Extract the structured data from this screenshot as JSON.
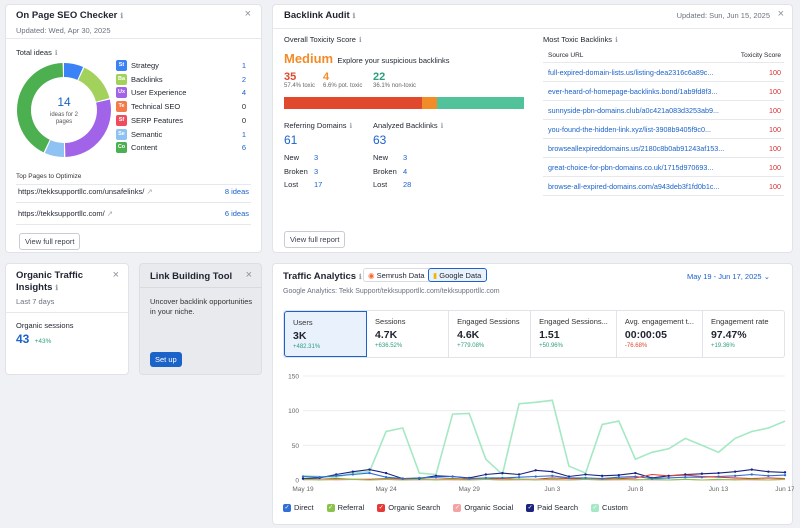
{
  "seo": {
    "title": "On Page SEO Checker",
    "updated": "Updated: Wed, Apr 30, 2025",
    "total_ideas_label": "Total ideas",
    "donut_value": "14",
    "donut_caption_1": "ideas for 2",
    "donut_caption_2": "pages",
    "categories": [
      {
        "badge": "St",
        "label": "Strategy",
        "count": "1",
        "color": "#3b82f6",
        "value": 1
      },
      {
        "badge": "Ba",
        "label": "Backlinks",
        "count": "2",
        "color": "#a3d25c",
        "value": 2
      },
      {
        "badge": "Ux",
        "label": "User Experience",
        "count": "4",
        "color": "#a163e8",
        "value": 4
      },
      {
        "badge": "Te",
        "label": "Technical SEO",
        "count": "0",
        "color": "#f47a4a",
        "value": 0
      },
      {
        "badge": "Sf",
        "label": "SERP Features",
        "count": "0",
        "color": "#ef4d5e",
        "value": 0
      },
      {
        "badge": "Se",
        "label": "Semantic",
        "count": "1",
        "color": "#8ec2f2",
        "value": 1
      },
      {
        "badge": "Co",
        "label": "Content",
        "count": "6",
        "color": "#4caf50",
        "value": 6
      }
    ],
    "top_pages_label": "Top Pages to Optimize",
    "pages": [
      {
        "url": "https://tekksupportllc.com/unsafelinks/",
        "ideas": "8 ideas"
      },
      {
        "url": "https://tekksupportllc.com/",
        "ideas": "6 ideas"
      }
    ],
    "report_btn": "View full report"
  },
  "audit": {
    "title": "Backlink Audit",
    "updated": "Updated: Sun, Jun 15, 2025",
    "overall_label": "Overall Toxicity Score",
    "score_word": "Medium",
    "score_tagline": "Explore your suspicious backlinks",
    "stats": [
      {
        "value": "35",
        "caption": "57.4% toxic",
        "color": "#e0492e"
      },
      {
        "value": "4",
        "caption": "6.6% pot. toxic",
        "color": "#f28c28"
      },
      {
        "value": "22",
        "caption": "36.1% non-toxic",
        "color": "#2f9e7e"
      }
    ],
    "bar_fractions": [
      0.574,
      0.066,
      0.361
    ],
    "bar_colors": [
      "#e0492e",
      "#f28c28",
      "#52c29a"
    ],
    "ref_domains_label": "Referring Domains",
    "ref_domains_value": "61",
    "analyzed_label": "Analyzed Backlinks",
    "analyzed_value": "63",
    "ref_rows": [
      {
        "label": "New",
        "value": "3"
      },
      {
        "label": "Broken",
        "value": "3"
      },
      {
        "label": "Lost",
        "value": "17"
      }
    ],
    "analyzed_rows": [
      {
        "label": "New",
        "value": "3"
      },
      {
        "label": "Broken",
        "value": "4"
      },
      {
        "label": "Lost",
        "value": "28"
      }
    ],
    "report_btn": "View full report",
    "toxic_title": "Most Toxic Backlinks",
    "col_source": "Source URL",
    "col_score": "Toxicity Score",
    "toxic_rows": [
      {
        "url": "full-expired-domain-lists.us/listing-dea2316c6a89c...",
        "score": "100"
      },
      {
        "url": "ever-heard-of-homepage-backlinks.bond/1ab9fd8f3...",
        "score": "100"
      },
      {
        "url": "sunnyside-pbn-domains.club/a0c421a083d3253ab9...",
        "score": "100"
      },
      {
        "url": "you-found-the-hidden-link.xyz/list-3908b9405f9c0...",
        "score": "100"
      },
      {
        "url": "browseallexpireddomains.us/2180c8b0ab91243af153...",
        "score": "100"
      },
      {
        "url": "great-choice-for-pbn-domains.co.uk/1715d970693...",
        "score": "100"
      },
      {
        "url": "browse-all-expired-domains.com/a943deb3f1fd0b1c...",
        "score": "100"
      }
    ]
  },
  "organic": {
    "title_1": "Organic Traffic",
    "title_2": "Insights",
    "period": "Last 7 days",
    "sessions_label": "Organic sessions",
    "sessions_value": "43",
    "sessions_delta": "+43%"
  },
  "linkbuilding": {
    "title": "Link Building Tool",
    "text_1": "Uncover backlink opportunities",
    "text_2": "in your niche.",
    "button": "Set up"
  },
  "traffic": {
    "title": "Traffic Analytics",
    "tab_semrush": "Semrush Data",
    "tab_google": "Google Data",
    "date_range": "May 19 - Jun 17, 2025",
    "subtitle": "Google Analytics: Tekk Support/tekksupportllc.com/tekksupportllc.com",
    "metrics": [
      {
        "label": "Users",
        "value": "3K",
        "delta": "+482.31%",
        "color": "#2f9e7e"
      },
      {
        "label": "Sessions",
        "value": "4.7K",
        "delta": "+636.52%",
        "color": "#2f9e7e"
      },
      {
        "label": "Engaged Sessions",
        "value": "4.6K",
        "delta": "+779.08%",
        "color": "#2f9e7e"
      },
      {
        "label": "Engaged Sessions...",
        "value": "1.51",
        "delta": "+50.96%",
        "color": "#2f9e7e"
      },
      {
        "label": "Avg. engagement t...",
        "value": "00:00:05",
        "delta": "-76.68%",
        "color": "#e0492e"
      },
      {
        "label": "Engagement rate",
        "value": "97.47%",
        "delta": "+19.36%",
        "color": "#2f9e7e"
      }
    ],
    "legend": [
      {
        "name": "Direct",
        "color": "#2f6fd6"
      },
      {
        "name": "Referral",
        "color": "#8bc34a"
      },
      {
        "name": "Organic Search",
        "color": "#e53935"
      },
      {
        "name": "Organic Social",
        "color": "#f4a3a3"
      },
      {
        "name": "Paid Search",
        "color": "#1a237e"
      },
      {
        "name": "Custom",
        "color": "#a4e8c4"
      }
    ]
  },
  "chart_data": {
    "type": "line",
    "ylim": [
      0,
      150
    ],
    "yticks": [
      "150",
      "100",
      "50",
      "0"
    ],
    "xticks": [
      "May 19",
      "May 24",
      "May 29",
      "Jun 3",
      "Jun 8",
      "Jun 13",
      "Jun 17"
    ],
    "x": [
      "May 19",
      "May 20",
      "May 21",
      "May 22",
      "May 23",
      "May 24",
      "May 25",
      "May 26",
      "May 27",
      "May 28",
      "May 29",
      "May 30",
      "May 31",
      "Jun 1",
      "Jun 2",
      "Jun 3",
      "Jun 4",
      "Jun 5",
      "Jun 6",
      "Jun 7",
      "Jun 8",
      "Jun 9",
      "Jun 10",
      "Jun 11",
      "Jun 12",
      "Jun 13",
      "Jun 14",
      "Jun 15",
      "Jun 16",
      "Jun 17"
    ],
    "series": [
      {
        "name": "Custom",
        "color": "#a4e8c4",
        "values": [
          6,
          5,
          4,
          10,
          12,
          70,
          75,
          10,
          8,
          95,
          96,
          30,
          8,
          110,
          112,
          115,
          20,
          10,
          80,
          85,
          30,
          40,
          45,
          60,
          50,
          40,
          60,
          70,
          75,
          85
        ]
      },
      {
        "name": "Paid Search",
        "color": "#1a237e",
        "values": [
          2,
          3,
          8,
          12,
          15,
          10,
          2,
          2,
          6,
          5,
          3,
          8,
          10,
          8,
          14,
          12,
          5,
          8,
          6,
          7,
          10,
          3,
          6,
          8,
          9,
          10,
          12,
          15,
          12,
          11
        ]
      },
      {
        "name": "Direct",
        "color": "#2f6fd6",
        "values": [
          5,
          4,
          6,
          8,
          10,
          4,
          2,
          3,
          4,
          5,
          2,
          3,
          3,
          4,
          5,
          6,
          3,
          3,
          2,
          4,
          5,
          2,
          3,
          4,
          4,
          5,
          6,
          8,
          6,
          7
        ]
      },
      {
        "name": "Organic Search",
        "color": "#e53935",
        "values": [
          1,
          1,
          2,
          1,
          1,
          2,
          1,
          1,
          1,
          2,
          1,
          1,
          2,
          1,
          1,
          3,
          2,
          1,
          1,
          2,
          3,
          8,
          6,
          7,
          5,
          4,
          3,
          2,
          3,
          2
        ]
      },
      {
        "name": "Organic Social",
        "color": "#f4a3a3",
        "values": [
          0,
          1,
          0,
          1,
          0,
          1,
          0,
          0,
          1,
          0,
          0,
          1,
          0,
          0,
          1,
          0,
          0,
          1,
          0,
          0,
          1,
          0,
          0,
          1,
          0,
          0,
          1,
          0,
          0,
          1
        ]
      },
      {
        "name": "Referral",
        "color": "#8bc34a",
        "values": [
          1,
          0,
          1,
          1,
          0,
          1,
          0,
          1,
          0,
          1,
          0,
          1,
          0,
          1,
          0,
          1,
          0,
          1,
          0,
          1,
          0,
          1,
          0,
          1,
          0,
          1,
          0,
          1,
          0,
          1
        ]
      }
    ]
  }
}
